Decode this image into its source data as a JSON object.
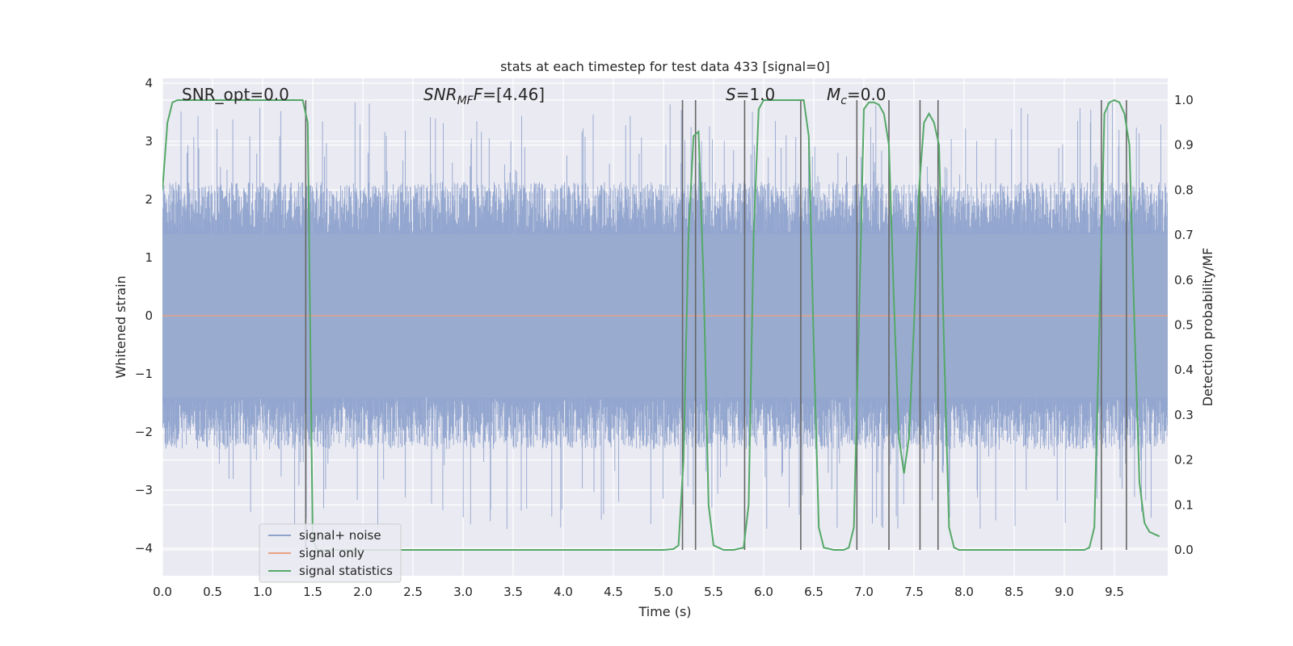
{
  "chart_data": {
    "type": "line",
    "title": "stats at each timestep for test data 433 [signal=0]",
    "xlabel": "Time (s)",
    "ylabel": "Whitened strain",
    "y2label": "Detection probability/MF",
    "xlim": [
      0.0,
      10.0
    ],
    "ylim": [
      -4.4,
      4.15
    ],
    "y2lim": [
      -0.05,
      1.03
    ],
    "x_ticks": [
      "0.0",
      "0.5",
      "1.0",
      "1.5",
      "2.0",
      "2.5",
      "3.0",
      "3.5",
      "4.0",
      "4.5",
      "5.0",
      "5.5",
      "6.0",
      "6.5",
      "7.0",
      "7.5",
      "8.0",
      "8.5",
      "9.0",
      "9.5"
    ],
    "y_ticks": [
      "4",
      "3",
      "2",
      "1",
      "0",
      "−1",
      "−2",
      "−3",
      "−4"
    ],
    "y2_ticks": [
      "1.0",
      "0.9",
      "0.8",
      "0.7",
      "0.6",
      "0.5",
      "0.4",
      "0.3",
      "0.2",
      "0.1",
      "0.0"
    ],
    "grid": true,
    "legend_position": "lower-left",
    "annotations": {
      "snr_opt": "SNR_opt=0.0",
      "snr_mf_name": "SNR",
      "snr_mf_sub": "MF",
      "snr_mf_value": "=[4.46]",
      "s_name": "S",
      "s_value": "=1.0",
      "mc_name": "M",
      "mc_sub": "c",
      "mc_value": "=0.0"
    },
    "series": [
      {
        "name": "signal+ noise",
        "color": "#8ea2cc",
        "description_values": "whitened strain noise, roughly within ±2 with spikes to about ±3.8"
      },
      {
        "name": "signal only",
        "color": "#e8a285",
        "values_constant": 0.0
      },
      {
        "name": "signal statistics",
        "color": "#55a868",
        "x": [
          0.0,
          0.05,
          0.1,
          0.15,
          0.2,
          1.2,
          1.35,
          1.4,
          1.45,
          1.5,
          1.55,
          2.0,
          5.0,
          5.1,
          5.15,
          5.2,
          5.25,
          5.3,
          5.35,
          5.4,
          5.45,
          5.5,
          5.6,
          5.7,
          5.8,
          5.85,
          5.9,
          5.95,
          6.0,
          6.05,
          6.1,
          6.3,
          6.4,
          6.45,
          6.5,
          6.55,
          6.6,
          6.7,
          6.8,
          6.85,
          6.9,
          6.95,
          7.0,
          7.05,
          7.1,
          7.15,
          7.2,
          7.25,
          7.3,
          7.35,
          7.4,
          7.45,
          7.5,
          7.55,
          7.6,
          7.65,
          7.7,
          7.75,
          7.8,
          7.85,
          7.9,
          7.95,
          8.0,
          9.0,
          9.2,
          9.25,
          9.3,
          9.35,
          9.4,
          9.45,
          9.5,
          9.55,
          9.6,
          9.65,
          9.7,
          9.75,
          9.8,
          9.85,
          9.95
        ],
        "values": [
          0.8,
          0.95,
          0.995,
          1.0,
          1.0,
          1.0,
          1.0,
          1.0,
          0.95,
          0.02,
          0.0,
          0.0,
          0.0,
          0.002,
          0.01,
          0.2,
          0.7,
          0.92,
          0.93,
          0.6,
          0.1,
          0.01,
          0.0,
          0.0,
          0.005,
          0.1,
          0.7,
          0.98,
          1.0,
          1.0,
          1.0,
          1.0,
          1.0,
          0.92,
          0.45,
          0.05,
          0.005,
          0.0,
          0.0,
          0.005,
          0.05,
          0.5,
          0.98,
          0.995,
          0.995,
          0.99,
          0.97,
          0.9,
          0.55,
          0.25,
          0.17,
          0.25,
          0.5,
          0.8,
          0.95,
          0.97,
          0.95,
          0.9,
          0.45,
          0.05,
          0.005,
          0.0,
          0.0,
          0.0,
          0.0,
          0.005,
          0.05,
          0.5,
          0.97,
          0.995,
          1.0,
          0.995,
          0.97,
          0.9,
          0.5,
          0.15,
          0.06,
          0.04,
          0.03
        ]
      },
      {
        "name": "",
        "color": "#666666",
        "type": "vlines",
        "x": [
          1.43,
          5.19,
          5.32,
          5.81,
          6.37,
          6.93,
          7.25,
          7.56,
          7.74,
          9.37,
          9.62
        ]
      }
    ]
  }
}
